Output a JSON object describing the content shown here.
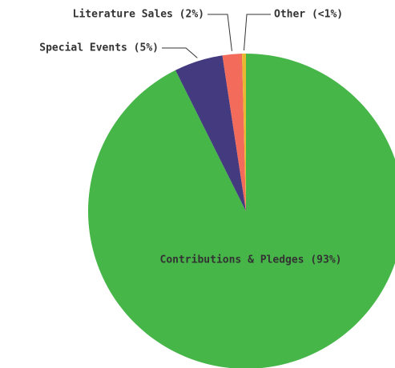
{
  "chart_data": {
    "type": "pie",
    "labels": [
      "Contributions & Pledges (93%)",
      "Special Events (5%)",
      "Literature Sales (2%)",
      "Other (<1%)"
    ],
    "values": [
      93,
      5,
      2,
      0.4
    ],
    "colors": [
      "#46b649",
      "#433a7f",
      "#f26b5b",
      "#e8b830"
    ]
  }
}
